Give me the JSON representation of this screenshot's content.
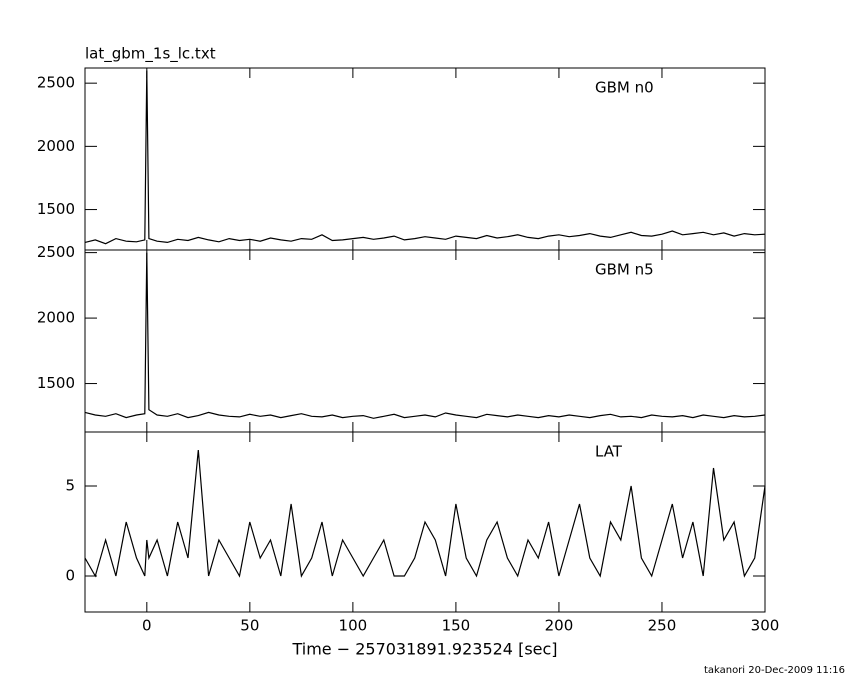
{
  "chart_data": [
    {
      "type": "line",
      "title": "lat_gbm_1s_lc.txt",
      "label": "GBM n0",
      "color": "#000000",
      "xlim": [
        -30,
        300
      ],
      "ylim": [
        1180,
        2620
      ],
      "yticks": [
        1500,
        2000,
        2500
      ],
      "x": [
        -30,
        -25,
        -20,
        -15,
        -10,
        -5,
        -1,
        0,
        1,
        5,
        10,
        15,
        20,
        25,
        30,
        35,
        40,
        45,
        50,
        55,
        60,
        65,
        70,
        75,
        80,
        85,
        90,
        95,
        100,
        105,
        110,
        115,
        120,
        125,
        130,
        135,
        140,
        145,
        150,
        155,
        160,
        165,
        170,
        175,
        180,
        185,
        190,
        195,
        200,
        205,
        210,
        215,
        220,
        225,
        230,
        235,
        240,
        245,
        250,
        255,
        260,
        265,
        270,
        275,
        280,
        285,
        290,
        295,
        300
      ],
      "values": [
        1240,
        1260,
        1230,
        1270,
        1250,
        1245,
        1260,
        2600,
        1270,
        1250,
        1240,
        1265,
        1255,
        1280,
        1260,
        1245,
        1270,
        1255,
        1265,
        1250,
        1275,
        1260,
        1250,
        1270,
        1265,
        1300,
        1255,
        1260,
        1270,
        1280,
        1265,
        1275,
        1290,
        1260,
        1270,
        1285,
        1275,
        1265,
        1290,
        1280,
        1270,
        1295,
        1275,
        1285,
        1300,
        1280,
        1270,
        1290,
        1300,
        1285,
        1295,
        1310,
        1290,
        1280,
        1300,
        1320,
        1295,
        1290,
        1305,
        1330,
        1300,
        1310,
        1320,
        1300,
        1315,
        1290,
        1310,
        1300,
        1305
      ]
    },
    {
      "type": "line",
      "label": "GBM n5",
      "color": "#000000",
      "xlim": [
        -30,
        300
      ],
      "ylim": [
        1130,
        2520
      ],
      "yticks": [
        1500,
        2000,
        2500
      ],
      "x": [
        -30,
        -25,
        -20,
        -15,
        -10,
        -5,
        -1,
        0,
        1,
        5,
        10,
        15,
        20,
        25,
        30,
        35,
        40,
        45,
        50,
        55,
        60,
        65,
        70,
        75,
        80,
        85,
        90,
        95,
        100,
        105,
        110,
        115,
        120,
        125,
        130,
        135,
        140,
        145,
        150,
        155,
        160,
        165,
        170,
        175,
        180,
        185,
        190,
        195,
        200,
        205,
        210,
        215,
        220,
        225,
        230,
        235,
        240,
        245,
        250,
        255,
        260,
        265,
        270,
        275,
        280,
        285,
        290,
        295,
        300
      ],
      "values": [
        1280,
        1260,
        1250,
        1270,
        1240,
        1260,
        1270,
        2500,
        1300,
        1260,
        1250,
        1270,
        1240,
        1255,
        1280,
        1260,
        1250,
        1245,
        1265,
        1250,
        1260,
        1240,
        1255,
        1270,
        1250,
        1245,
        1260,
        1240,
        1250,
        1255,
        1235,
        1250,
        1265,
        1240,
        1250,
        1260,
        1245,
        1275,
        1260,
        1250,
        1240,
        1265,
        1255,
        1245,
        1260,
        1250,
        1240,
        1255,
        1245,
        1260,
        1250,
        1240,
        1255,
        1265,
        1245,
        1250,
        1240,
        1260,
        1250,
        1245,
        1255,
        1240,
        1260,
        1250,
        1240,
        1255,
        1245,
        1250,
        1260
      ]
    },
    {
      "type": "line",
      "label": "LAT",
      "color": "#000000",
      "xlim": [
        -30,
        300
      ],
      "ylim": [
        -2,
        8
      ],
      "yticks": [
        0,
        5
      ],
      "xticks": [
        0,
        50,
        100,
        150,
        200,
        250,
        300
      ],
      "xlabel": "Time − 257031891.923524 [sec]",
      "x": [
        -30,
        -25,
        -20,
        -15,
        -10,
        -5,
        -1,
        0,
        1,
        5,
        10,
        15,
        20,
        25,
        30,
        35,
        40,
        45,
        50,
        55,
        60,
        65,
        70,
        75,
        80,
        85,
        90,
        95,
        100,
        105,
        110,
        115,
        120,
        125,
        130,
        135,
        140,
        145,
        150,
        155,
        160,
        165,
        170,
        175,
        180,
        185,
        190,
        195,
        200,
        205,
        210,
        215,
        220,
        225,
        230,
        235,
        240,
        245,
        250,
        255,
        260,
        265,
        270,
        275,
        280,
        285,
        290,
        295,
        300
      ],
      "values": [
        1,
        0,
        2,
        0,
        3,
        1,
        0,
        2,
        1,
        2,
        0,
        3,
        1,
        7,
        0,
        2,
        1,
        0,
        3,
        1,
        2,
        0,
        4,
        0,
        1,
        3,
        0,
        2,
        1,
        0,
        1,
        2,
        0,
        0,
        1,
        3,
        2,
        0,
        4,
        1,
        0,
        2,
        3,
        1,
        0,
        2,
        1,
        3,
        0,
        2,
        4,
        1,
        0,
        3,
        2,
        5,
        1,
        0,
        2,
        4,
        1,
        3,
        0,
        6,
        2,
        3,
        0,
        1,
        5
      ]
    }
  ],
  "footer": "takanori 20-Dec-2009 11:16"
}
